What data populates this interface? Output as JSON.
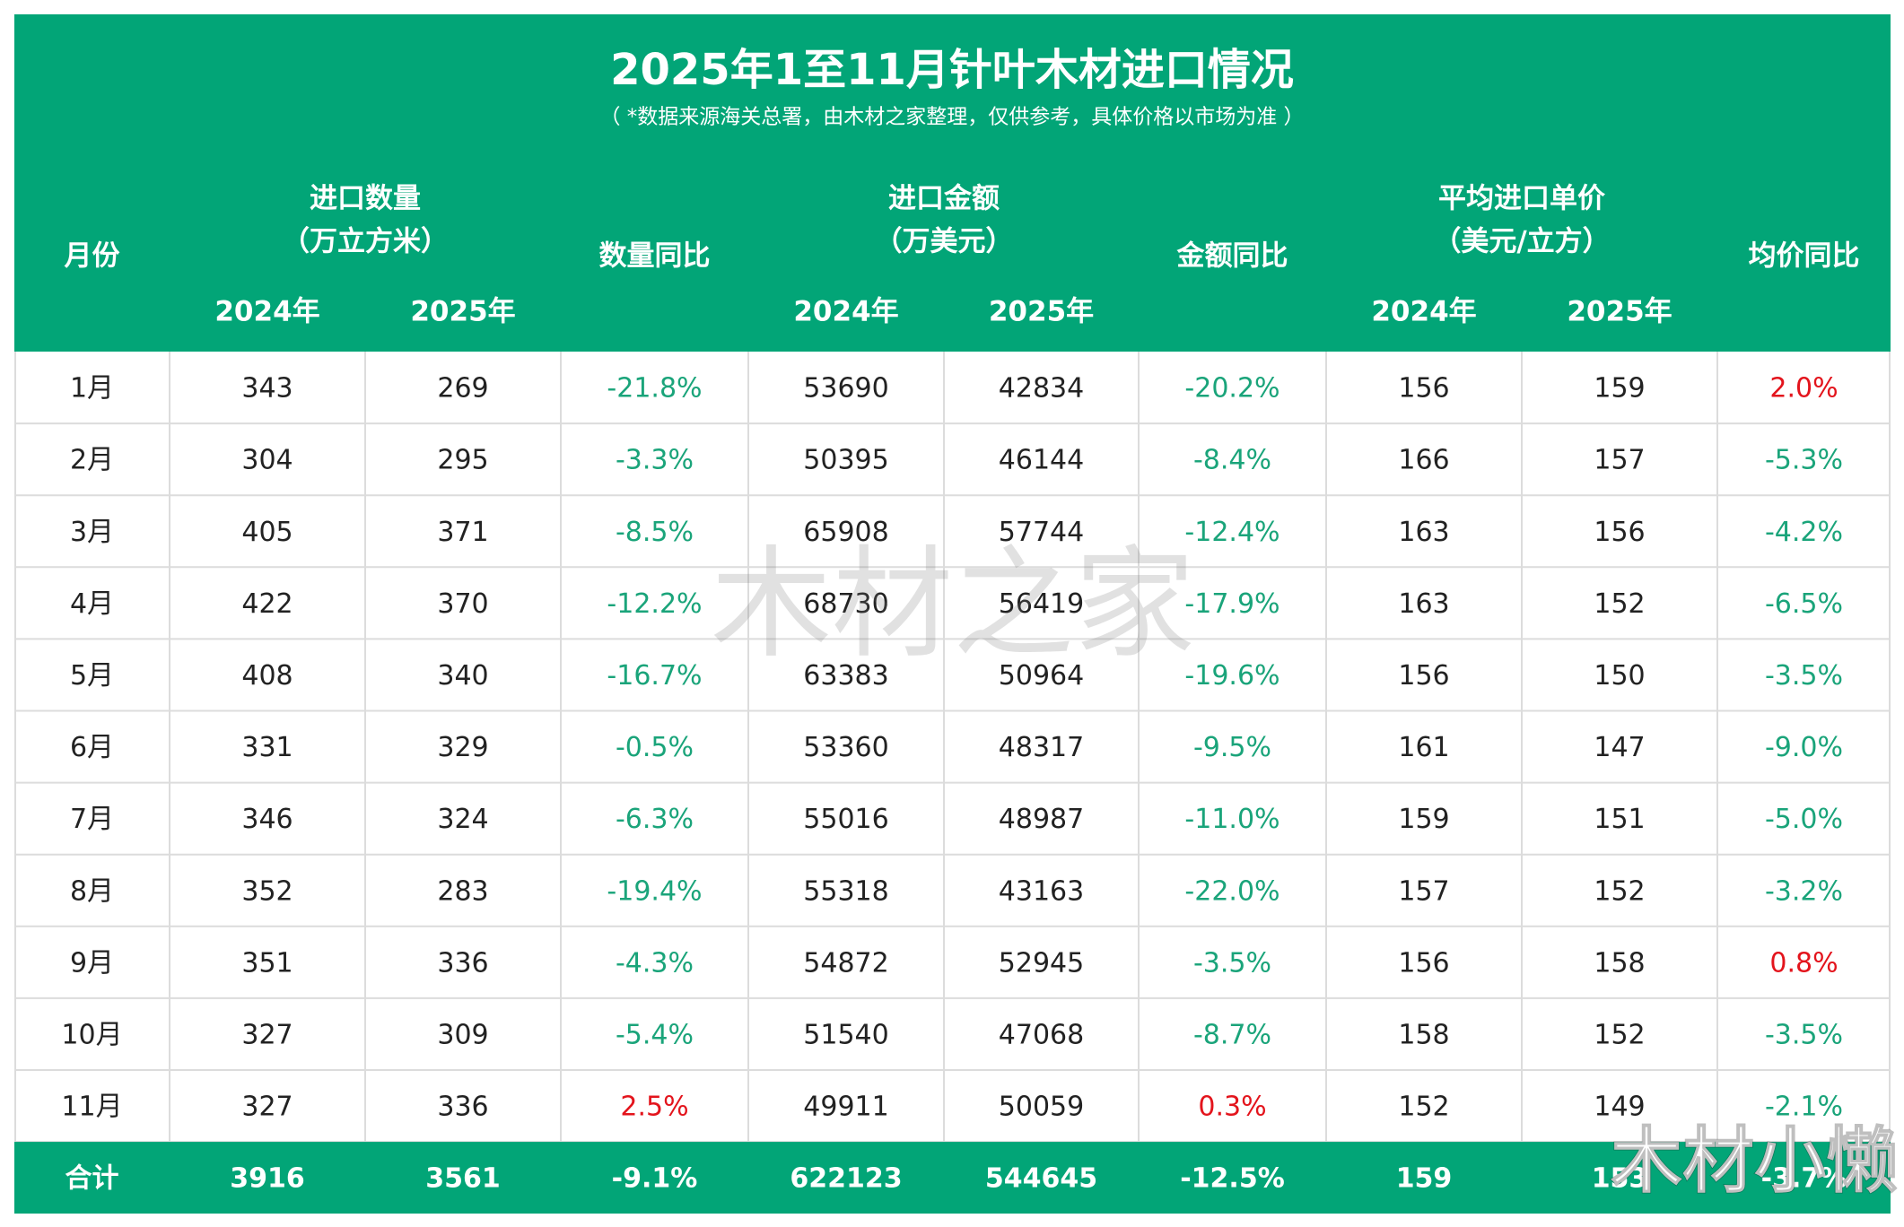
{
  "header": {
    "title": "2025年1至11月针叶木材进口情况",
    "subtitle": "（ *数据来源海关总署，由木材之家整理，仅供参考，具体价格以市场为准 ）"
  },
  "columns": {
    "month": "月份",
    "groups": [
      {
        "label": "进口数量",
        "unit": "（万立方米）",
        "years": [
          "2024年",
          "2025年"
        ],
        "change": "数量同比"
      },
      {
        "label": "进口金额",
        "unit": "（万美元）",
        "years": [
          "2024年",
          "2025年"
        ],
        "change": "金额同比"
      },
      {
        "label": "平均进口单价",
        "unit": "（美元/立方）",
        "years": [
          "2024年",
          "2025年"
        ],
        "change": "均价同比"
      }
    ]
  },
  "table": {
    "rows": [
      [
        "1月",
        "343",
        "269",
        "-21.8%",
        "53690",
        "42834",
        "-20.2%",
        "156",
        "159",
        "2.0%"
      ],
      [
        "2月",
        "304",
        "295",
        "-3.3%",
        "50395",
        "46144",
        "-8.4%",
        "166",
        "157",
        "-5.3%"
      ],
      [
        "3月",
        "405",
        "371",
        "-8.5%",
        "65908",
        "57744",
        "-12.4%",
        "163",
        "156",
        "-4.2%"
      ],
      [
        "4月",
        "422",
        "370",
        "-12.2%",
        "68730",
        "56419",
        "-17.9%",
        "163",
        "152",
        "-6.5%"
      ],
      [
        "5月",
        "408",
        "340",
        "-16.7%",
        "63383",
        "50964",
        "-19.6%",
        "156",
        "150",
        "-3.5%"
      ],
      [
        "6月",
        "331",
        "329",
        "-0.5%",
        "53360",
        "48317",
        "-9.5%",
        "161",
        "147",
        "-9.0%"
      ],
      [
        "7月",
        "346",
        "324",
        "-6.3%",
        "55016",
        "48987",
        "-11.0%",
        "159",
        "151",
        "-5.0%"
      ],
      [
        "8月",
        "352",
        "283",
        "-19.4%",
        "55318",
        "43163",
        "-22.0%",
        "157",
        "152",
        "-3.2%"
      ],
      [
        "9月",
        "351",
        "336",
        "-4.3%",
        "54872",
        "52945",
        "-3.5%",
        "156",
        "158",
        "0.8%"
      ],
      [
        "10月",
        "327",
        "309",
        "-5.4%",
        "51540",
        "47068",
        "-8.7%",
        "158",
        "152",
        "-3.5%"
      ],
      [
        "11月",
        "327",
        "336",
        "2.5%",
        "49911",
        "50059",
        "0.3%",
        "152",
        "149",
        "-2.1%"
      ]
    ],
    "total": [
      "合计",
      "3916",
      "3561",
      "-9.1%",
      "622123",
      "544645",
      "-12.5%",
      "159",
      "153",
      "-3.7%"
    ]
  },
  "watermarks": [
    "木材之家",
    "木材小懒"
  ]
}
